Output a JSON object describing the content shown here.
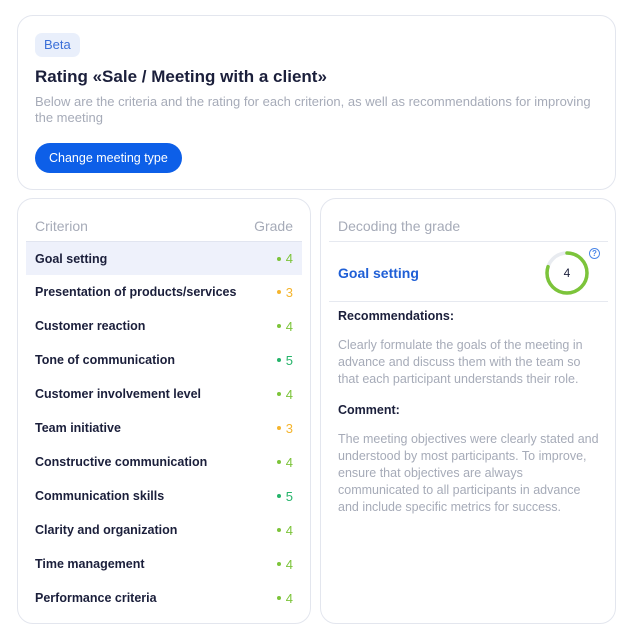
{
  "header": {
    "badge": "Beta",
    "title": "Rating «Sale / Meeting with a client»",
    "subtitle": "Below are the criteria and the rating for each criterion, as well as recommendations for improving the meeting",
    "change_button": "Change meeting type"
  },
  "criteria_table": {
    "col_criterion": "Criterion",
    "col_grade": "Grade",
    "rows": [
      {
        "label": "Goal setting",
        "grade": "4",
        "color": "#7cc43a",
        "selected": true
      },
      {
        "label": "Presentation of products/services",
        "grade": "3",
        "color": "#f5b52e",
        "selected": false
      },
      {
        "label": "Customer reaction",
        "grade": "4",
        "color": "#7cc43a",
        "selected": false
      },
      {
        "label": "Tone of communication",
        "grade": "5",
        "color": "#25b46a",
        "selected": false
      },
      {
        "label": "Customer involvement level",
        "grade": "4",
        "color": "#7cc43a",
        "selected": false
      },
      {
        "label": "Team initiative",
        "grade": "3",
        "color": "#f5b52e",
        "selected": false
      },
      {
        "label": "Constructive communication",
        "grade": "4",
        "color": "#7cc43a",
        "selected": false
      },
      {
        "label": "Communication skills",
        "grade": "5",
        "color": "#25b46a",
        "selected": false
      },
      {
        "label": "Clarity and organization",
        "grade": "4",
        "color": "#7cc43a",
        "selected": false
      },
      {
        "label": "Time management",
        "grade": "4",
        "color": "#7cc43a",
        "selected": false
      },
      {
        "label": "Performance criteria",
        "grade": "4",
        "color": "#7cc43a",
        "selected": false
      }
    ]
  },
  "decode": {
    "header": "Decoding the grade",
    "selected_title": "Goal setting",
    "score": "4",
    "score_fraction": 0.8,
    "score_color": "#7cc43a",
    "help_icon": "question-circle-icon",
    "help_glyph": "?",
    "recommendations_label": "Recommendations:",
    "recommendations_text": "Clearly formulate the goals of the meeting in advance and discuss them with the team so that each participant understands their role.",
    "comment_label": "Comment:",
    "comment_text": "The meeting objectives were clearly stated and understood by most participants. To improve, ensure that objectives are always communicated to all participants in advance and include specific metrics for success."
  }
}
